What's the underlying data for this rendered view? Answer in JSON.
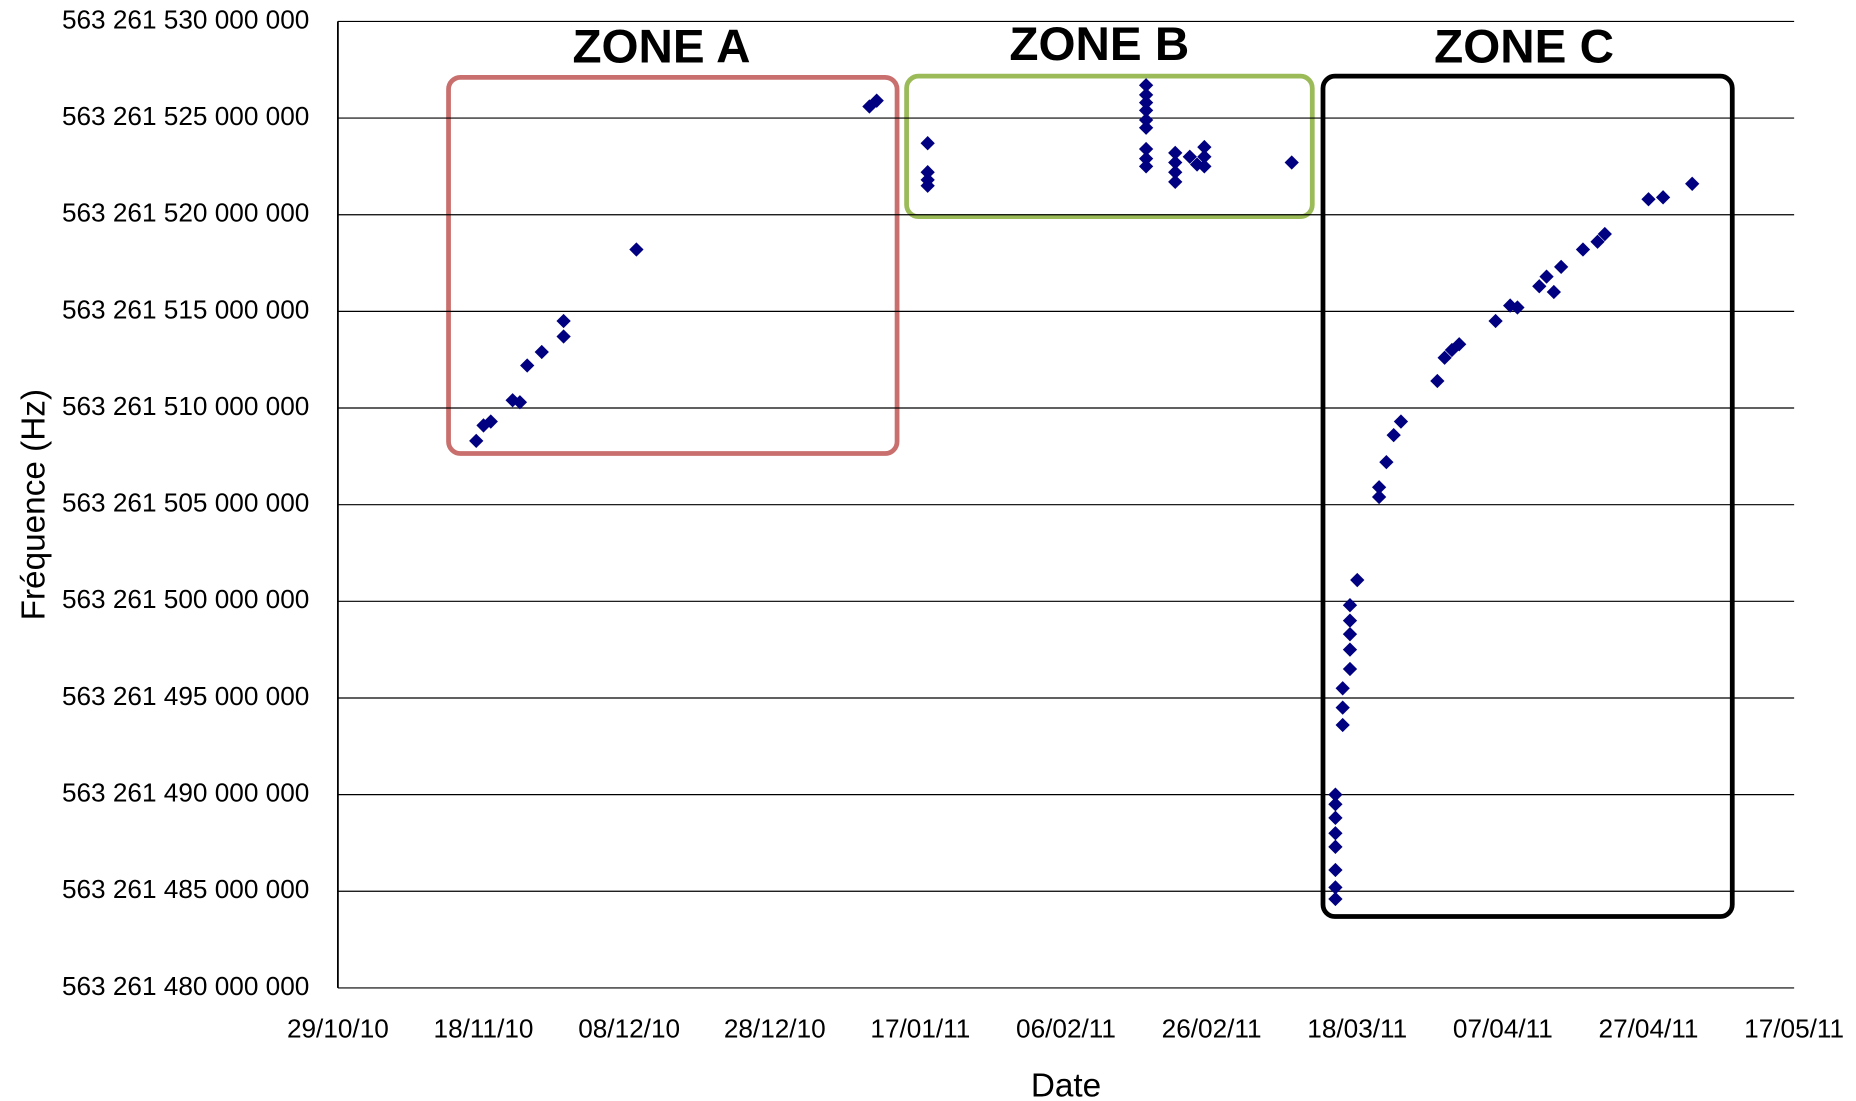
{
  "chart_data": {
    "type": "scatter",
    "xlabel": "Date",
    "ylabel": "Fréquence (Hz)",
    "color": "#000080",
    "annotations": [
      "ZONE A",
      "ZONE B",
      "ZONE C"
    ],
    "xlim": [
      "2010-10-29",
      "2011-05-17"
    ],
    "xticks": [
      {
        "value": "2010-10-29",
        "label": "29/10/10"
      },
      {
        "value": "2010-11-18",
        "label": "18/11/10"
      },
      {
        "value": "2010-12-08",
        "label": "08/12/10"
      },
      {
        "value": "2010-12-28",
        "label": "28/12/10"
      },
      {
        "value": "2011-01-17",
        "label": "17/01/11"
      },
      {
        "value": "2011-02-06",
        "label": "06/02/11"
      },
      {
        "value": "2011-02-26",
        "label": "26/02/11"
      },
      {
        "value": "2011-03-18",
        "label": "18/03/11"
      },
      {
        "value": "2011-04-07",
        "label": "07/04/11"
      },
      {
        "value": "2011-04-27",
        "label": "27/04/11"
      },
      {
        "value": "2011-05-17",
        "label": "17/05/11"
      }
    ],
    "ylim": [
      563261480000000,
      563261530000000
    ],
    "yticks": [
      {
        "value": 563261480000000,
        "label": "563 261 480 000 000"
      },
      {
        "value": 563261485000000,
        "label": "563 261 485 000 000"
      },
      {
        "value": 563261490000000,
        "label": "563 261 490 000 000"
      },
      {
        "value": 563261495000000,
        "label": "563 261 495 000 000"
      },
      {
        "value": 563261500000000,
        "label": "563 261 500 000 000"
      },
      {
        "value": 563261505000000,
        "label": "563 261 505 000 000"
      },
      {
        "value": 563261510000000,
        "label": "563 261 510 000 000"
      },
      {
        "value": 563261515000000,
        "label": "563 261 515 000 000"
      },
      {
        "value": 563261520000000,
        "label": "563 261 520 000 000"
      },
      {
        "value": 563261525000000,
        "label": "563 261 525 000 000"
      },
      {
        "value": 563261530000000,
        "label": "563 261 530 000 000"
      }
    ],
    "grid": true,
    "x": [
      "2010-11-17",
      "2010-11-18",
      "2010-11-19",
      "2010-11-22",
      "2010-11-23",
      "2010-11-24",
      "2010-11-26",
      "2010-11-29",
      "2010-11-29",
      "2010-12-09",
      "2011-01-10",
      "2011-01-11",
      "2011-01-18",
      "2011-01-18",
      "2011-01-18",
      "2011-01-18",
      "2011-02-17",
      "2011-02-17",
      "2011-02-17",
      "2011-02-17",
      "2011-02-17",
      "2011-02-17",
      "2011-02-17",
      "2011-02-17",
      "2011-02-17",
      "2011-02-21",
      "2011-02-21",
      "2011-02-21",
      "2011-02-21",
      "2011-02-23",
      "2011-02-24",
      "2011-02-25",
      "2011-02-25",
      "2011-02-25",
      "2011-03-09",
      "2011-03-15",
      "2011-03-15",
      "2011-03-15",
      "2011-03-15",
      "2011-03-15",
      "2011-03-15",
      "2011-03-15",
      "2011-03-15",
      "2011-03-16",
      "2011-03-16",
      "2011-03-16",
      "2011-03-17",
      "2011-03-17",
      "2011-03-17",
      "2011-03-17",
      "2011-03-17",
      "2011-03-18",
      "2011-03-21",
      "2011-03-21",
      "2011-03-22",
      "2011-03-23",
      "2011-03-24",
      "2011-03-29",
      "2011-03-30",
      "2011-03-31",
      "2011-04-01",
      "2011-04-06",
      "2011-04-08",
      "2011-04-09",
      "2011-04-12",
      "2011-04-13",
      "2011-04-14",
      "2011-04-15",
      "2011-04-18",
      "2011-04-20",
      "2011-04-21",
      "2011-04-27",
      "2011-04-29",
      "2011-05-03"
    ],
    "values": [
      563261508300000,
      563261509100000,
      563261509300000,
      563261510400000,
      563261510300000,
      563261512200000,
      563261512900000,
      563261513700000,
      563261514500000,
      563261518200000,
      563261525600000,
      563261525900000,
      563261523700000,
      563261522200000,
      563261521800000,
      563261521500000,
      563261526700000,
      563261526200000,
      563261525800000,
      563261525400000,
      563261524900000,
      563261524500000,
      563261523400000,
      563261522900000,
      563261522500000,
      563261523200000,
      563261522700000,
      563261522200000,
      563261521700000,
      563261523000000,
      563261522600000,
      563261522500000,
      563261523500000,
      563261523000000,
      563261522700000,
      563261484600000,
      563261485200000,
      563261486100000,
      563261487300000,
      563261488000000,
      563261488800000,
      563261489500000,
      563261490000000,
      563261493600000,
      563261494500000,
      563261495500000,
      563261496500000,
      563261497500000,
      563261498300000,
      563261499000000,
      563261499800000,
      563261501100000,
      563261505900000,
      563261505400000,
      563261507200000,
      563261508600000,
      563261509300000,
      563261511400000,
      563261512600000,
      563261513000000,
      563261513300000,
      563261514500000,
      563261515300000,
      563261515200000,
      563261516300000,
      563261516800000,
      563261516000000,
      563261517300000,
      563261518200000,
      563261518600000,
      563261519000000,
      563261520800000,
      563261520900000,
      563261521600000
    ]
  }
}
